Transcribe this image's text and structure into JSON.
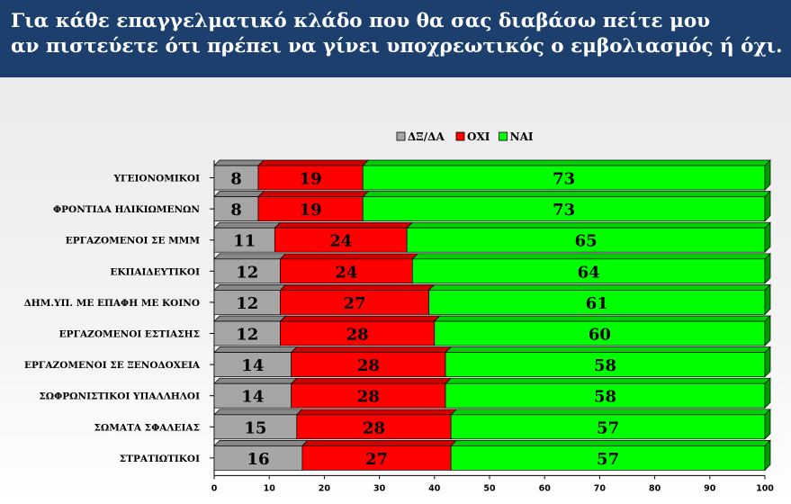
{
  "header": {
    "title_line1": "Για κάθε επαγγελματικό κλάδο που θα σας διαβάσω πείτε μου",
    "title_line2": "αν πιστεύετε ότι πρέπει να γίνει υποχρεωτικός ο εμβολιασμός ή όχι."
  },
  "chart_data": {
    "type": "bar",
    "orientation": "horizontal",
    "stacked": true,
    "categories": [
      "ΥΓΕΙΟΝΟΜΙΚΟΙ",
      "ΦΡΟΝΤΙΔΑ ΗΛΙΚΙΩΜΕΝΩΝ",
      "ΕΡΓΑΖΟΜΕΝΟΙ ΣΕ ΜΜΜ",
      "ΕΚΠΑΙΔΕΥΤΙΚΟΙ",
      "ΔΗΜ.ΥΠ. ΜΕ ΕΠΑΦΗ ΜΕ ΚΟΙΝΟ",
      "ΕΡΓΑΖΟΜΕΝΟΙ ΕΣΤΙΑΣΗΣ",
      "ΕΡΓΑΖΟΜΕΝΟΙ ΣΕ ΞΕΝΟΔΟΧΕΙΑ",
      "ΣΩΦΡΩΝΙΣΤΙΚΟΙ ΥΠΑΛΛΗΛΟΙ",
      "ΣΩΜΑΤΑ ΣΦΑΛΕΙΑΣ",
      "ΣΤΡΑΤΙΩΤΙΚΟΙ"
    ],
    "series": [
      {
        "name": "ΔΞ/ΔΑ",
        "color": "#a6a6a6",
        "values": [
          8,
          8,
          11,
          12,
          12,
          12,
          14,
          14,
          15,
          16
        ]
      },
      {
        "name": "ΟΧΙ",
        "color": "#ff0000",
        "values": [
          19,
          19,
          24,
          24,
          27,
          28,
          28,
          28,
          28,
          27
        ]
      },
      {
        "name": "ΝΑΙ",
        "color": "#00ff00",
        "values": [
          73,
          73,
          65,
          64,
          61,
          60,
          58,
          58,
          57,
          57
        ]
      }
    ],
    "xlim": [
      0,
      100
    ],
    "xticks": [
      0,
      10,
      20,
      30,
      40,
      50,
      60,
      70,
      80,
      90,
      100
    ],
    "legend_position": "top-center",
    "grid": false
  }
}
